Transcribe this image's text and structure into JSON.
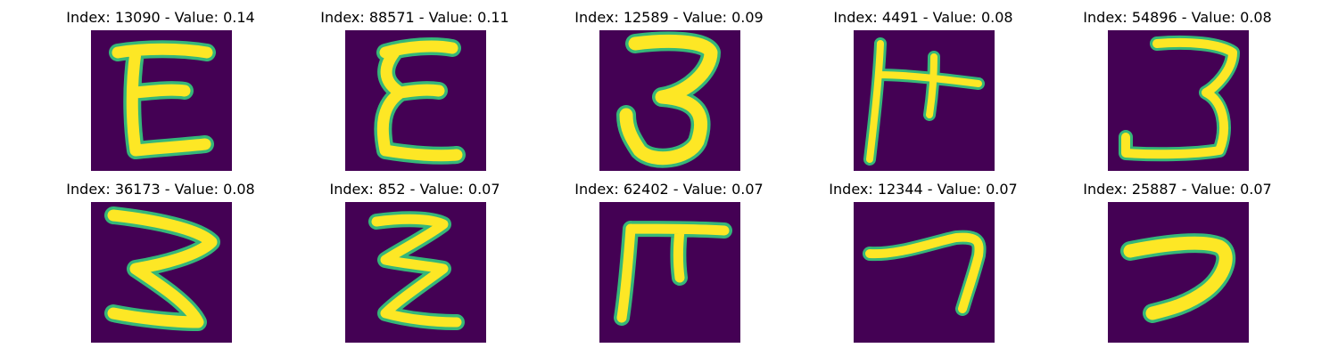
{
  "panels": [
    {
      "title": "Index: 13090 - Value: 0.14",
      "glyph": "E"
    },
    {
      "title": "Index: 88571 - Value: 0.11",
      "glyph": "E"
    },
    {
      "title": "Index: 12589 - Value: 0.09",
      "glyph": "3"
    },
    {
      "title": "Index: 4491 - Value: 0.08",
      "glyph": "H"
    },
    {
      "title": "Index: 54896 - Value: 0.08",
      "glyph": "3"
    },
    {
      "title": "Index: 36173 - Value: 0.08",
      "glyph": "3"
    },
    {
      "title": "Index: 852 - Value: 0.07",
      "glyph": "3"
    },
    {
      "title": "Index: 62402 - Value: 0.07",
      "glyph": "F"
    },
    {
      "title": "Index: 12344 - Value: 0.07",
      "glyph": "7"
    },
    {
      "title": "Index: 25887 - Value: 0.07",
      "glyph": "2"
    }
  ],
  "colors": {
    "background": "#440154",
    "stroke_core": "#fde725",
    "stroke_edge": "#35b779"
  }
}
